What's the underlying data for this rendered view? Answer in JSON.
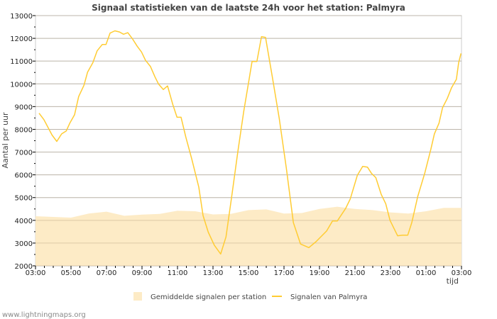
{
  "chart_data": {
    "type": "line",
    "title": "Signaal statistieken van de laatste 24h voor het station: Palmyra",
    "xlabel": "tijd",
    "ylabel": "Aantal per uur",
    "ylim": [
      2000,
      13000
    ],
    "xlim_hours": [
      0,
      24
    ],
    "x_tick_labels": [
      "03:00",
      "05:00",
      "07:00",
      "09:00",
      "11:00",
      "13:00",
      "15:00",
      "17:00",
      "19:00",
      "21:00",
      "23:00",
      "01:00",
      "03:00"
    ],
    "y_ticks": [
      2000,
      3000,
      4000,
      5000,
      6000,
      7000,
      8000,
      9000,
      10000,
      11000,
      12000,
      13000
    ],
    "grid": true,
    "legend_position": "bottom",
    "series": [
      {
        "name": "Gemiddelde signalen per station",
        "kind": "area",
        "color": "#fdebc6",
        "x": [
          0,
          1,
          2,
          3,
          4,
          5,
          6,
          7,
          8,
          9,
          10,
          11,
          12,
          13,
          14,
          15,
          16,
          17,
          18,
          19,
          20,
          21,
          22,
          23,
          24
        ],
        "values": [
          4180,
          4150,
          4120,
          4300,
          4380,
          4200,
          4250,
          4280,
          4420,
          4400,
          4260,
          4280,
          4450,
          4480,
          4300,
          4320,
          4500,
          4600,
          4500,
          4450,
          4350,
          4300,
          4400,
          4550,
          4550
        ]
      },
      {
        "name": "Signalen van Palmyra",
        "kind": "line",
        "color": "#ffcc33",
        "x": [
          0.2,
          0.47,
          0.93,
          1.2,
          1.47,
          1.73,
          1.93,
          2.2,
          2.43,
          2.73,
          2.93,
          3.23,
          3.47,
          3.76,
          3.97,
          4.2,
          4.47,
          4.73,
          4.96,
          5.2,
          5.47,
          5.73,
          5.97,
          6.2,
          6.47,
          6.73,
          6.93,
          7.2,
          7.44,
          7.73,
          7.97,
          8.2,
          8.47,
          8.8,
          9.2,
          9.44,
          9.73,
          10.07,
          10.43,
          10.73,
          11.07,
          11.4,
          11.73,
          12,
          12.2,
          12.47,
          12.73,
          12.96,
          13.33,
          13.73,
          14.13,
          14.53,
          14.93,
          15.4,
          15.8,
          16.4,
          16.73,
          17,
          17.47,
          17.73,
          18.13,
          18.43,
          18.7,
          18.93,
          19.17,
          19.47,
          19.73,
          19.97,
          20.4,
          20.67,
          20.97,
          21.2,
          21.53,
          21.93,
          22.27,
          22.47,
          22.73,
          22.93,
          23.2,
          23.44,
          23.71,
          23.84,
          23.97
        ],
        "values": [
          8710,
          8430,
          7750,
          7470,
          7800,
          7930,
          8270,
          8640,
          9440,
          9940,
          10510,
          10930,
          11450,
          11730,
          11730,
          12230,
          12330,
          12280,
          12180,
          12250,
          11970,
          11650,
          11400,
          11030,
          10770,
          10300,
          9990,
          9750,
          9910,
          9100,
          8530,
          8530,
          7650,
          6710,
          5460,
          4210,
          3480,
          2910,
          2520,
          3270,
          5150,
          7020,
          8790,
          10040,
          10980,
          10980,
          12070,
          12040,
          10350,
          8480,
          6290,
          3900,
          2960,
          2800,
          3060,
          3530,
          3970,
          3970,
          4520,
          4940,
          5980,
          6370,
          6340,
          6060,
          5880,
          5150,
          4730,
          4000,
          3320,
          3350,
          3350,
          3900,
          5040,
          6080,
          7120,
          7800,
          8270,
          8950,
          9360,
          9830,
          10200,
          10930,
          11340
        ]
      }
    ]
  },
  "footer": "www.lightningmaps.org"
}
